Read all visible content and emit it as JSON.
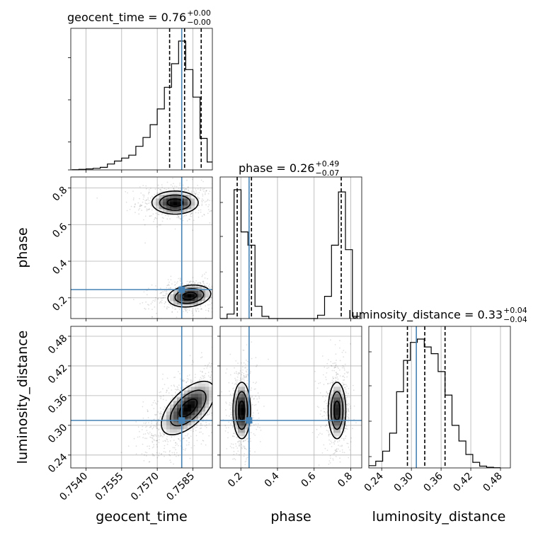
{
  "chart_data": {
    "type": "corner",
    "parameters": [
      {
        "name": "geocent_time",
        "label": "geocent_time",
        "ticks": [
          "0.7540",
          "0.7555",
          "0.7570",
          "0.7585"
        ],
        "tick_values": [
          0.754,
          0.7555,
          0.757,
          0.7585
        ],
        "range": [
          0.75336,
          0.75932
        ]
      },
      {
        "name": "phase",
        "label": "phase",
        "ticks": [
          "0.2",
          "0.4",
          "0.6",
          "0.8"
        ],
        "tick_values": [
          0.2,
          0.4,
          0.6,
          0.8
        ],
        "range": [
          0.087,
          0.86
        ]
      },
      {
        "name": "luminosity_distance",
        "label": "luminosity_distance",
        "ticks": [
          "0.24",
          "0.30",
          "0.36",
          "0.42",
          "0.48"
        ],
        "tick_values": [
          0.24,
          0.3,
          0.36,
          0.42,
          0.48
        ],
        "range": [
          0.214,
          0.5
        ]
      }
    ],
    "titles": [
      {
        "param": "geocent_time",
        "text": "geocent_time = 0.76",
        "sup": "+0.00",
        "sub": "−0.00"
      },
      {
        "param": "phase",
        "text": "phase = 0.26",
        "sup": "+0.49",
        "sub": "−0.07"
      },
      {
        "param": "luminosity_distance",
        "text": "luminosity_distance = 0.33",
        "sup": "+0.04",
        "sub": "−0.04"
      }
    ],
    "truths": {
      "geocent_time": 0.75803,
      "phase": 0.245,
      "luminosity_distance": 0.31
    },
    "truth_color": "#4682b4",
    "quantiles": {
      "geocent_time": [
        0.75752,
        0.75815,
        0.75885
      ],
      "phase": [
        0.18,
        0.258,
        0.748
      ],
      "luminosity_distance": [
        0.292,
        0.327,
        0.368
      ]
    },
    "histograms": {
      "geocent_time": {
        "edges": [
          0.7534,
          0.7537,
          0.754,
          0.7543,
          0.7546,
          0.7549,
          0.7552,
          0.7555,
          0.7558,
          0.7561,
          0.7564,
          0.7567,
          0.757,
          0.7573,
          0.7576,
          0.7579,
          0.7582,
          0.7585,
          0.7588,
          0.7591,
          0.7594
        ],
        "counts": [
          1,
          3,
          5,
          8,
          13,
          30,
          45,
          60,
          75,
          120,
          165,
          230,
          310,
          420,
          540,
          655,
          510,
          370,
          160,
          40
        ]
      },
      "phase": {
        "edges": [
          0.087,
          0.125,
          0.163,
          0.201,
          0.239,
          0.277,
          0.315,
          0.353,
          0.391,
          0.429,
          0.467,
          0.505,
          0.543,
          0.581,
          0.619,
          0.657,
          0.695,
          0.733,
          0.771,
          0.809,
          0.847
        ],
        "counts": [
          0,
          20,
          580,
          390,
          330,
          55,
          10,
          0,
          0,
          0,
          0,
          0,
          0,
          0,
          15,
          100,
          330,
          570,
          310,
          10
        ]
      },
      "luminosity_distance": {
        "edges": [
          0.214,
          0.228,
          0.242,
          0.256,
          0.27,
          0.284,
          0.298,
          0.312,
          0.326,
          0.34,
          0.354,
          0.368,
          0.382,
          0.396,
          0.41,
          0.424,
          0.438,
          0.452,
          0.466,
          0.48
        ],
        "counts": [
          10,
          30,
          75,
          155,
          340,
          480,
          560,
          575,
          540,
          510,
          430,
          325,
          190,
          120,
          60,
          25,
          8,
          3,
          1
        ]
      }
    },
    "contour_levels": [
      0.5,
      1.0,
      1.5
    ],
    "modes": {
      "geocent_time_vs_phase": [
        {
          "mean": [
            0.75775,
            0.72
          ],
          "std": [
            0.00065,
            0.042
          ],
          "rho": 0.0,
          "weight": 0.5
        },
        {
          "mean": [
            0.75835,
            0.21
          ],
          "std": [
            0.0006,
            0.04
          ],
          "rho": 0.2,
          "weight": 0.5
        }
      ],
      "geocent_time_vs_luminosity_distance": [
        {
          "mean": [
            0.7583,
            0.335
          ],
          "std": [
            0.00075,
            0.036
          ],
          "rho": 0.6,
          "weight": 1.0
        }
      ],
      "phase_vs_luminosity_distance": [
        {
          "mean": [
            0.205,
            0.33
          ],
          "std": [
            0.032,
            0.038
          ],
          "rho": 0.0,
          "weight": 0.52
        },
        {
          "mean": [
            0.725,
            0.33
          ],
          "std": [
            0.032,
            0.038
          ],
          "rho": 0.0,
          "weight": 0.48
        }
      ]
    },
    "grid": true
  }
}
